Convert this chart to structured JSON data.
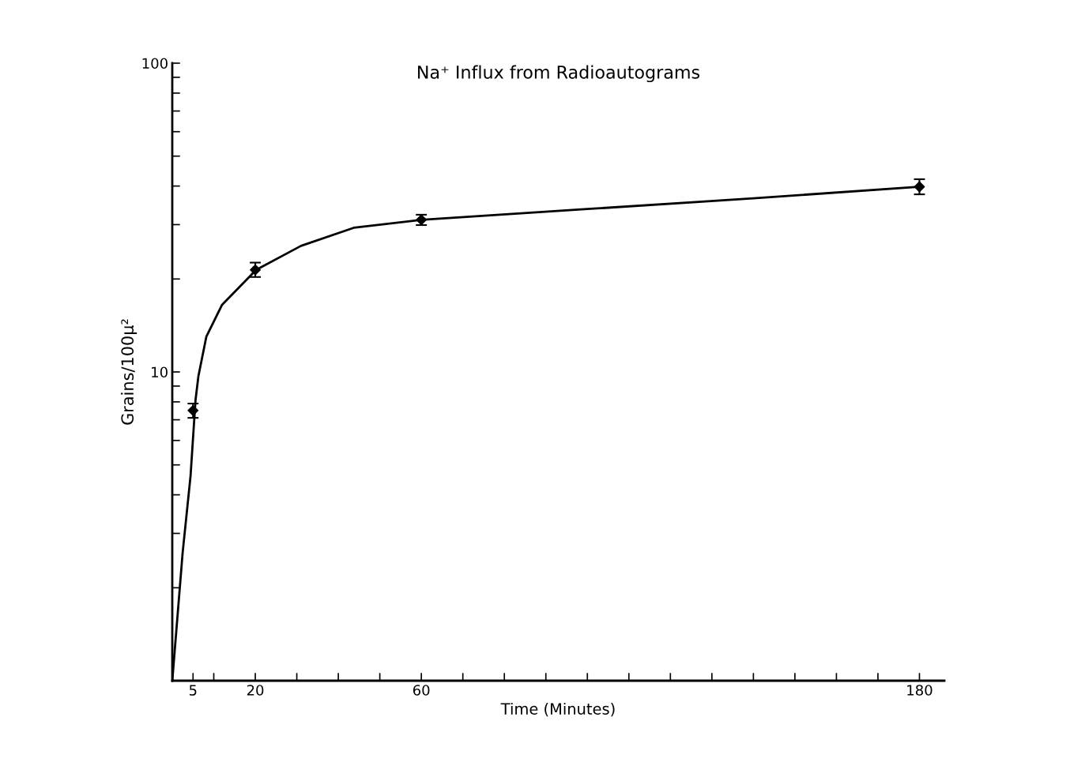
{
  "chart_data": {
    "type": "scatter",
    "title": "Na⁺ Influx from Radioautograms",
    "xlabel": "Time (Minutes)",
    "ylabel": "Grains/100μ²",
    "log": "y",
    "xlim": [
      0,
      186
    ],
    "ylim": [
      1,
      100
    ],
    "xticks": [
      {
        "value": 5,
        "label": "5"
      },
      {
        "value": 10,
        "label": null
      },
      {
        "value": 20,
        "label": "20"
      },
      {
        "value": 30,
        "label": null
      },
      {
        "value": 40,
        "label": null
      },
      {
        "value": 50,
        "label": null
      },
      {
        "value": 60,
        "label": "60"
      },
      {
        "value": 70,
        "label": null
      },
      {
        "value": 80,
        "label": null
      },
      {
        "value": 90,
        "label": null
      },
      {
        "value": 100,
        "label": null
      },
      {
        "value": 110,
        "label": null
      },
      {
        "value": 120,
        "label": null
      },
      {
        "value": 130,
        "label": null
      },
      {
        "value": 140,
        "label": null
      },
      {
        "value": 150,
        "label": null
      },
      {
        "value": 160,
        "label": null
      },
      {
        "value": 170,
        "label": null
      },
      {
        "value": 180,
        "label": "180"
      }
    ],
    "yticks": [
      {
        "value": 2,
        "label": null
      },
      {
        "value": 3,
        "label": null
      },
      {
        "value": 4,
        "label": null
      },
      {
        "value": 5,
        "label": null
      },
      {
        "value": 6,
        "label": null
      },
      {
        "value": 7,
        "label": null
      },
      {
        "value": 8,
        "label": null
      },
      {
        "value": 9,
        "label": null
      },
      10,
      {
        "value": 20,
        "label": null
      },
      {
        "value": 30,
        "label": null
      },
      {
        "value": 40,
        "label": null
      },
      {
        "value": 50,
        "label": null
      },
      {
        "value": 60,
        "label": null
      },
      {
        "value": 70,
        "label": null
      },
      {
        "value": 80,
        "label": null
      },
      {
        "value": 90,
        "label": null
      },
      100
    ],
    "grid": false,
    "legend": false,
    "series": [
      {
        "color": "#000000",
        "marker": "diamond",
        "x": [
          5,
          20,
          60,
          180
        ],
        "values": [
          7.5,
          21.4,
          31.1,
          39.8
        ],
        "errors": [
          [
            7.1,
            7.9
          ],
          [
            20.3,
            22.6
          ],
          [
            29.9,
            32.3
          ],
          [
            37.6,
            42.1
          ]
        ]
      },
      {
        "type": "line",
        "color": "#000000",
        "line_style": "solid",
        "x": [
          0,
          2.5,
          4.4,
          5.6,
          6.3,
          8.2,
          12,
          20.2,
          31,
          43.7,
          60,
          100,
          140,
          180
        ],
        "values": [
          1,
          2.6,
          4.6,
          8.1,
          9.7,
          13,
          16.5,
          21.4,
          25.6,
          29.3,
          31.1,
          33.7,
          36.5,
          39.8
        ]
      }
    ]
  }
}
